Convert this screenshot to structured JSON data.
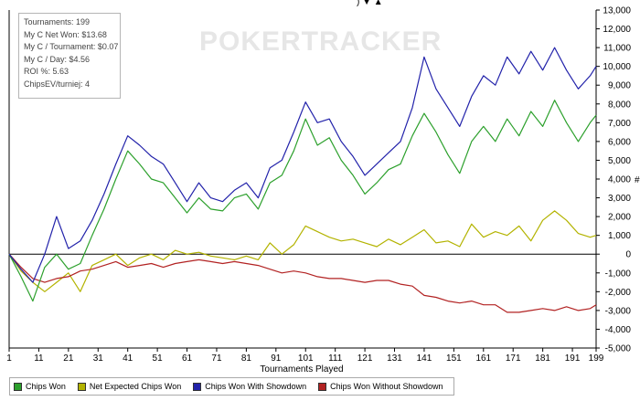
{
  "header_fragment": ") ▼ ▲",
  "watermark": "POKERTRACKER",
  "stats": [
    "Tournaments: 199",
    "My C Net Won: $13.68",
    "My C / Tournament: $0.07",
    "My C / Day: $4.56",
    "ROI %: 5.63",
    "ChipsEV/turniej: 4"
  ],
  "chart_data": {
    "type": "line",
    "xlabel": "Tournaments Played",
    "ylabel": "#",
    "xlim": [
      1,
      199
    ],
    "ylim": [
      -5000,
      13000
    ],
    "x_ticks": [
      "1",
      "11",
      "21",
      "31",
      "41",
      "51",
      "61",
      "71",
      "81",
      "91",
      "101",
      "111",
      "121",
      "131",
      "141",
      "151",
      "161",
      "171",
      "181",
      "191",
      "199"
    ],
    "y_ticks": [
      "13,000",
      "12,000",
      "11,000",
      "10,000",
      "9,000",
      "8,000",
      "7,000",
      "6,000",
      "5,000",
      "4,000",
      "3,000",
      "2,000",
      "1,000",
      "0",
      "-1,000",
      "-2,000",
      "-3,000",
      "-4,000",
      "-5,000"
    ],
    "grid": false,
    "legend_position": "bottom-left",
    "series": [
      {
        "name": "Chips Won",
        "color": "#2ca02c",
        "x": [
          1,
          5,
          9,
          13,
          17,
          21,
          25,
          29,
          33,
          37,
          41,
          45,
          49,
          53,
          57,
          61,
          65,
          69,
          73,
          77,
          81,
          85,
          89,
          93,
          97,
          101,
          105,
          109,
          113,
          117,
          121,
          125,
          129,
          133,
          137,
          141,
          145,
          149,
          153,
          157,
          161,
          165,
          169,
          173,
          177,
          181,
          185,
          189,
          193,
          197,
          199
        ],
        "y": [
          0,
          -1200,
          -2500,
          -700,
          0,
          -800,
          -500,
          1000,
          2400,
          4000,
          5500,
          4800,
          4000,
          3800,
          3000,
          2200,
          3000,
          2400,
          2300,
          3000,
          3200,
          2400,
          3800,
          4200,
          5500,
          7200,
          5800,
          6200,
          5000,
          4200,
          3200,
          3800,
          4500,
          4800,
          6300,
          7500,
          6500,
          5300,
          4300,
          6000,
          6800,
          6000,
          7200,
          6300,
          7600,
          6800,
          8200,
          7000,
          6000,
          7000,
          7400
        ]
      },
      {
        "name": "Net Expected Chips Won",
        "color": "#b3b300",
        "x": [
          1,
          5,
          9,
          13,
          17,
          21,
          25,
          29,
          33,
          37,
          41,
          45,
          49,
          53,
          57,
          61,
          65,
          69,
          73,
          77,
          81,
          85,
          89,
          93,
          97,
          101,
          105,
          109,
          113,
          117,
          121,
          125,
          129,
          133,
          137,
          141,
          145,
          149,
          153,
          157,
          161,
          165,
          169,
          173,
          177,
          181,
          185,
          189,
          193,
          197,
          199
        ],
        "y": [
          0,
          -900,
          -1500,
          -2000,
          -1500,
          -1000,
          -2000,
          -600,
          -300,
          0,
          -600,
          -200,
          0,
          -300,
          200,
          0,
          100,
          -100,
          -200,
          -300,
          -100,
          -300,
          600,
          0,
          500,
          1500,
          1200,
          900,
          700,
          800,
          600,
          400,
          800,
          500,
          900,
          1300,
          600,
          700,
          400,
          1600,
          900,
          1200,
          1000,
          1500,
          700,
          1800,
          2300,
          1800,
          1100,
          900,
          1000
        ]
      },
      {
        "name": "Chips Won With Showdown",
        "color": "#2222aa",
        "x": [
          1,
          5,
          9,
          13,
          17,
          21,
          25,
          29,
          33,
          37,
          41,
          45,
          49,
          53,
          57,
          61,
          65,
          69,
          73,
          77,
          81,
          85,
          89,
          93,
          97,
          101,
          105,
          109,
          113,
          117,
          121,
          125,
          129,
          133,
          137,
          141,
          145,
          149,
          153,
          157,
          161,
          165,
          169,
          173,
          177,
          181,
          185,
          189,
          193,
          197,
          199
        ],
        "y": [
          0,
          -800,
          -1500,
          0,
          2000,
          300,
          700,
          1800,
          3200,
          4800,
          6300,
          5800,
          5200,
          4800,
          3800,
          2800,
          3800,
          3000,
          2800,
          3400,
          3800,
          3000,
          4600,
          5000,
          6500,
          8100,
          7000,
          7200,
          6000,
          5200,
          4200,
          4800,
          5400,
          6000,
          7800,
          10500,
          8800,
          7800,
          6800,
          8400,
          9500,
          9000,
          10500,
          9600,
          10800,
          9800,
          11000,
          9800,
          8800,
          9500,
          10000
        ]
      },
      {
        "name": "Chips Won Without Showdown",
        "color": "#b22222",
        "x": [
          1,
          5,
          9,
          13,
          17,
          21,
          25,
          29,
          33,
          37,
          41,
          45,
          49,
          53,
          57,
          61,
          65,
          69,
          73,
          77,
          81,
          85,
          89,
          93,
          97,
          101,
          105,
          109,
          113,
          117,
          121,
          125,
          129,
          133,
          137,
          141,
          145,
          149,
          153,
          157,
          161,
          165,
          169,
          173,
          177,
          181,
          185,
          189,
          193,
          197,
          199
        ],
        "y": [
          0,
          -700,
          -1300,
          -1500,
          -1300,
          -1200,
          -900,
          -800,
          -600,
          -400,
          -700,
          -600,
          -500,
          -700,
          -500,
          -400,
          -300,
          -400,
          -500,
          -400,
          -500,
          -600,
          -800,
          -1000,
          -900,
          -1000,
          -1200,
          -1300,
          -1300,
          -1400,
          -1500,
          -1400,
          -1400,
          -1600,
          -1700,
          -2200,
          -2300,
          -2500,
          -2600,
          -2500,
          -2700,
          -2700,
          -3100,
          -3100,
          -3000,
          -2900,
          -3000,
          -2800,
          -3000,
          -2900,
          -2700
        ]
      }
    ]
  }
}
